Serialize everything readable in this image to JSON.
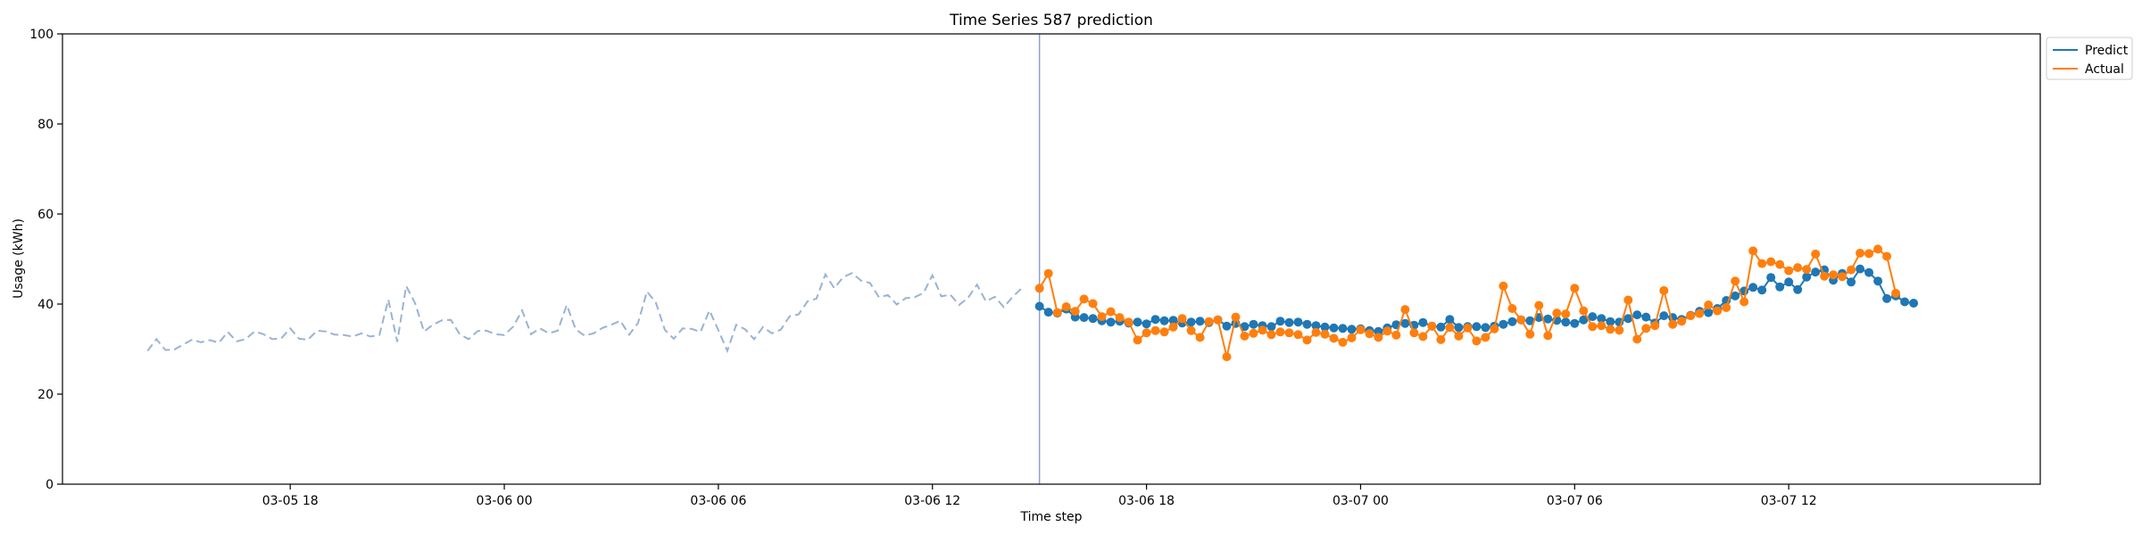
{
  "chart_data": {
    "type": "line",
    "title": "Time Series 587 prediction",
    "xlabel": "Time step",
    "ylabel": "Usage (kWh)",
    "ylim": [
      0,
      100
    ],
    "xlim": [
      "2024-03-05 11:37",
      "2024-03-07 19:03"
    ],
    "grid": false,
    "legend_position": "upper-right-outside",
    "x_ticks": [
      {
        "value": "2024-03-05 18:00",
        "label": "03-05 18"
      },
      {
        "value": "2024-03-06 00:00",
        "label": "03-06 00"
      },
      {
        "value": "2024-03-06 06:00",
        "label": "03-06 06"
      },
      {
        "value": "2024-03-06 12:00",
        "label": "03-06 12"
      },
      {
        "value": "2024-03-06 18:00",
        "label": "03-06 18"
      },
      {
        "value": "2024-03-07 00:00",
        "label": "03-07 00"
      },
      {
        "value": "2024-03-07 06:00",
        "label": "03-07 06"
      },
      {
        "value": "2024-03-07 12:00",
        "label": "03-07 12"
      }
    ],
    "y_ticks": [
      0,
      20,
      40,
      60,
      80,
      100
    ],
    "forecast_start": "2024-03-06 15:00",
    "history": {
      "start": "2024-03-05 14:00",
      "step_minutes": 15,
      "color": "#9ab3d3",
      "values": [
        29.6,
        32.2,
        29.8,
        29.9,
        31.0,
        32.1,
        31.5,
        32.0,
        31.4,
        33.8,
        31.7,
        32.2,
        33.9,
        33.3,
        32.2,
        32.4,
        34.6,
        32.3,
        32.1,
        34.1,
        33.9,
        33.2,
        33.1,
        32.8,
        33.5,
        32.8,
        33.1,
        41.0,
        31.6,
        44.0,
        40.2,
        33.9,
        35.4,
        36.4,
        36.5,
        33.3,
        32.2,
        34.0,
        34.1,
        33.3,
        33.1,
        35.0,
        38.6,
        33.3,
        34.6,
        33.5,
        34.1,
        39.8,
        34.4,
        33.0,
        33.5,
        34.7,
        35.4,
        36.3,
        33.2,
        35.8,
        42.8,
        40.3,
        34.3,
        32.3,
        34.6,
        34.5,
        33.8,
        38.6,
        34.2,
        29.6,
        35.4,
        34.4,
        32.2,
        34.9,
        33.5,
        34.3,
        37.3,
        37.7,
        40.6,
        41.2,
        46.6,
        43.5,
        46.0,
        46.9,
        45.2,
        44.7,
        41.5,
        42.0,
        39.9,
        41.3,
        41.5,
        42.5,
        46.4,
        41.7,
        42.1,
        39.8,
        41.4,
        44.3,
        40.6,
        41.6,
        39.3,
        41.6,
        43.5
      ]
    },
    "series": [
      {
        "name": "Predict",
        "color": "#1f77b4",
        "start": "2024-03-06 15:00",
        "step_minutes": 15,
        "values": [
          39.5,
          38.2,
          38.0,
          38.9,
          37.1,
          37.0,
          36.8,
          36.3,
          36.0,
          36.2,
          35.8,
          36.0,
          35.6,
          36.6,
          36.3,
          36.4,
          35.8,
          36.0,
          36.2,
          35.9,
          36.5,
          35.1,
          35.7,
          35.0,
          35.5,
          35.2,
          35.0,
          36.2,
          35.9,
          36.0,
          35.5,
          35.2,
          34.9,
          34.7,
          34.6,
          34.4,
          34.5,
          34.1,
          33.9,
          34.7,
          35.4,
          35.7,
          35.3,
          35.9,
          35.1,
          34.9,
          36.6,
          34.8,
          35.0,
          35.0,
          34.8,
          35.1,
          35.5,
          36.1,
          36.5,
          36.3,
          37.0,
          36.7,
          36.4,
          36.0,
          35.7,
          36.5,
          37.2,
          36.8,
          36.1,
          36.0,
          36.8,
          37.6,
          37.1,
          35.8,
          37.4,
          37.0,
          36.6,
          37.5,
          38.4,
          38.1,
          39.0,
          40.8,
          41.8,
          42.9,
          43.7,
          43.1,
          45.9,
          43.8,
          44.9,
          43.2,
          46.0,
          47.1,
          47.6,
          45.3,
          46.8,
          44.9,
          47.8,
          47.0,
          45.1,
          41.2,
          41.8,
          40.5,
          40.2
        ]
      },
      {
        "name": "Actual",
        "color": "#ff7f0e",
        "start": "2024-03-06 15:00",
        "step_minutes": 15,
        "values": [
          43.5,
          46.8,
          38.1,
          39.4,
          38.4,
          41.1,
          40.1,
          37.2,
          38.3,
          37.0,
          36.0,
          32.0,
          33.6,
          34.1,
          33.8,
          34.9,
          36.8,
          34.1,
          32.6,
          36.1,
          36.5,
          28.3,
          37.1,
          32.9,
          33.5,
          34.2,
          33.2,
          33.8,
          33.6,
          33.2,
          32.0,
          33.7,
          33.3,
          32.4,
          31.5,
          32.5,
          34.3,
          33.4,
          32.6,
          34.0,
          33.1,
          38.8,
          33.6,
          32.8,
          35.1,
          32.1,
          34.8,
          32.9,
          34.7,
          31.8,
          32.6,
          34.5,
          44.0,
          39.0,
          36.5,
          33.3,
          39.7,
          33.0,
          38.0,
          37.8,
          43.5,
          38.5,
          35.0,
          35.2,
          34.4,
          34.2,
          40.9,
          32.2,
          34.6,
          35.2,
          43.0,
          35.5,
          36.2,
          37.4,
          37.9,
          39.8,
          38.5,
          39.2,
          45.1,
          40.5,
          51.8,
          49.0,
          49.4,
          48.8,
          47.4,
          48.1,
          47.7,
          51.1,
          46.2,
          46.5,
          46.1,
          47.6,
          51.3,
          51.2,
          52.2,
          50.6,
          42.4
        ]
      }
    ],
    "vline_color": "#8ea1cc"
  }
}
